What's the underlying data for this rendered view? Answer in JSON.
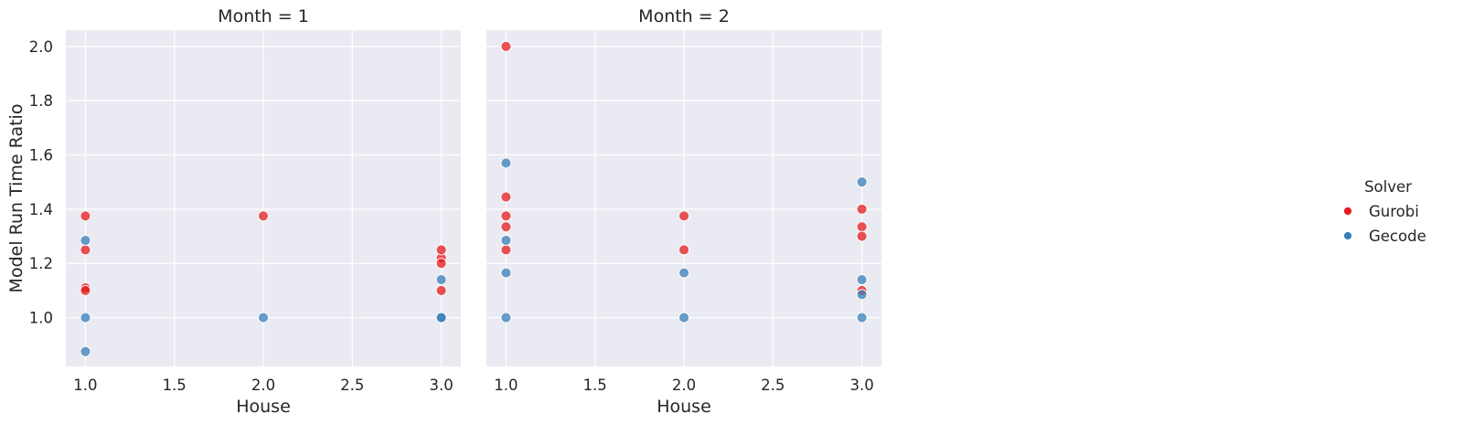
{
  "chart_data": [
    {
      "type": "scatter",
      "title": "Month = 1",
      "xlabel": "House",
      "ylabel": "Model Run Time Ratio",
      "xlim": [
        0.89,
        3.11
      ],
      "ylim": [
        0.82,
        2.06
      ],
      "xticks": [
        "1.0",
        "1.5",
        "2.0",
        "2.5",
        "3.0"
      ],
      "yticks": [
        "1.0",
        "1.2",
        "1.4",
        "1.6",
        "1.8",
        "2.0"
      ],
      "grid": true,
      "series": [
        {
          "name": "Gurobi",
          "x": [
            1,
            1,
            1,
            1,
            2,
            3,
            3,
            3,
            3
          ],
          "y": [
            1.375,
            1.25,
            1.11,
            1.1,
            1.375,
            1.22,
            1.2,
            1.1,
            1.25
          ]
        },
        {
          "name": "Gecode",
          "x": [
            1,
            1,
            1,
            2,
            3,
            3,
            3
          ],
          "y": [
            1.285,
            1.0,
            0.875,
            1.0,
            1.14,
            1.0,
            1.0
          ]
        }
      ]
    },
    {
      "type": "scatter",
      "title": "Month = 2",
      "xlabel": "House",
      "ylabel": "",
      "xlim": [
        0.89,
        3.11
      ],
      "ylim": [
        0.82,
        2.06
      ],
      "xticks": [
        "1.0",
        "1.5",
        "2.0",
        "2.5",
        "3.0"
      ],
      "yticks": [],
      "grid": true,
      "series": [
        {
          "name": "Gurobi",
          "x": [
            1,
            1,
            1,
            1,
            1,
            2,
            2,
            3,
            3,
            3,
            3
          ],
          "y": [
            2.0,
            1.445,
            1.375,
            1.335,
            1.25,
            1.375,
            1.25,
            1.4,
            1.335,
            1.3,
            1.1
          ]
        },
        {
          "name": "Gecode",
          "x": [
            1,
            1,
            1,
            1,
            2,
            2,
            3,
            3,
            3,
            3
          ],
          "y": [
            1.57,
            1.285,
            1.165,
            1.0,
            1.165,
            1.0,
            1.5,
            1.14,
            1.085,
            1.0
          ]
        }
      ]
    }
  ],
  "legend": {
    "title": "Solver",
    "placement": "right",
    "items": [
      {
        "label": "Gurobi",
        "color": "#e41a1c"
      },
      {
        "label": "Gecode",
        "color": "#377eb8"
      }
    ]
  },
  "style": {
    "panel_bg": "#eaeaf2",
    "grid_color": "#ffffff",
    "text_color": "#262626"
  }
}
